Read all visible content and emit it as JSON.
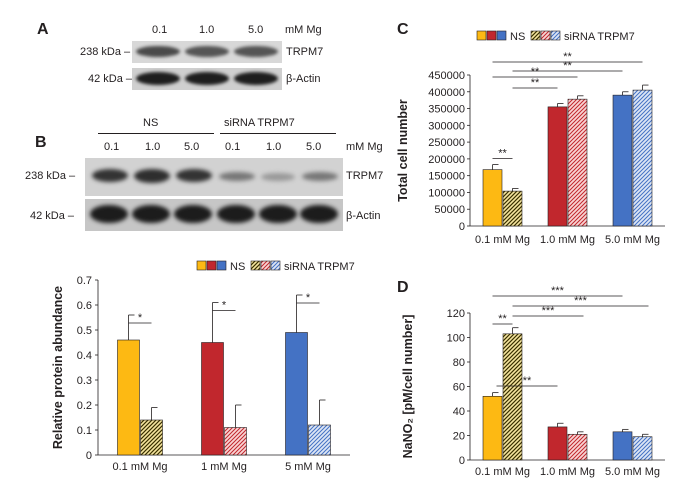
{
  "panel_a": {
    "letter": "A",
    "concentrations": [
      "0.1",
      "1.0",
      "5.0"
    ],
    "unit": "mM Mg",
    "bands": [
      {
        "size": "238 kDa –",
        "name": "TRPM7"
      },
      {
        "size": "42 kDa –",
        "name": "β-Actin"
      }
    ]
  },
  "panel_b": {
    "letter": "B",
    "groups": [
      "NS",
      "siRNA TRPM7"
    ],
    "concentrations": [
      "0.1",
      "1.0",
      "5.0",
      "0.1",
      "1.0",
      "5.0"
    ],
    "unit": "mM Mg",
    "bands": [
      {
        "size": "238 kDa –",
        "name": "TRPM7"
      },
      {
        "size": "42 kDa –",
        "name": "β-Actin"
      }
    ]
  },
  "panel_c": {
    "letter": "C"
  },
  "panel_d": {
    "letter": "D"
  },
  "colors": {
    "ns": [
      "#fdb913",
      "#c1272d",
      "#4472c4"
    ],
    "sirna_light": [
      "#f6e6a0",
      "#f3b4b4",
      "#c9d6ef"
    ],
    "sirna_dark": [
      "#3a3000",
      "#c1272d",
      "#4472c4"
    ],
    "sig_line": "#231f20"
  },
  "chart_data": [
    {
      "id": "protein",
      "type": "bar",
      "categories": [
        "0.1 mM Mg",
        "1 mM Mg",
        "5 mM Mg"
      ],
      "series": [
        {
          "name": "NS",
          "values": [
            0.46,
            0.45,
            0.49
          ],
          "errors": [
            0.1,
            0.16,
            0.15
          ]
        },
        {
          "name": "siRNA TRPM7",
          "values": [
            0.14,
            0.11,
            0.12
          ],
          "errors": [
            0.05,
            0.09,
            0.1
          ]
        }
      ],
      "ylabel": "Relative protein abundance",
      "ylim": [
        0,
        0.7
      ],
      "yticks": [
        "0",
        "0.1",
        "0.2",
        "0.3",
        "0.4",
        "0.5",
        "0.6",
        "0.7"
      ],
      "significance": [
        "*",
        "*",
        "*"
      ]
    },
    {
      "id": "cellnum",
      "type": "bar",
      "categories": [
        "0.1 mM Mg",
        "1.0 mM Mg",
        "5.0 mM Mg"
      ],
      "series": [
        {
          "name": "NS",
          "values": [
            168000,
            355000,
            390000
          ],
          "errors": [
            15000,
            10000,
            10000
          ]
        },
        {
          "name": "siRNA TRPM7",
          "values": [
            104000,
            378000,
            405000
          ],
          "errors": [
            8000,
            10000,
            15000
          ]
        }
      ],
      "ylabel": "Total cell number",
      "ylim": [
        0,
        450000
      ],
      "yticks": [
        "0",
        "50000",
        "100000",
        "150000",
        "200000",
        "250000",
        "300000",
        "350000",
        "400000",
        "450000"
      ],
      "significance": [
        "**",
        "**",
        "**",
        "**",
        "**"
      ]
    },
    {
      "id": "nano2",
      "type": "bar",
      "categories": [
        "0.1 mM Mg",
        "1.0 mM Mg",
        "5.0 mM Mg"
      ],
      "series": [
        {
          "name": "NS",
          "values": [
            52,
            27,
            23
          ],
          "errors": [
            3,
            3,
            2
          ]
        },
        {
          "name": "siRNA TRPM7",
          "values": [
            103,
            21,
            19
          ],
          "errors": [
            5,
            2,
            2
          ]
        }
      ],
      "ylabel": "NaNO₂ [pM/cell number]",
      "ylim": [
        0,
        120
      ],
      "yticks": [
        "0",
        "20",
        "40",
        "60",
        "80",
        "100",
        "120"
      ],
      "significance": [
        "**",
        "**",
        "***",
        "***",
        "***"
      ]
    }
  ]
}
